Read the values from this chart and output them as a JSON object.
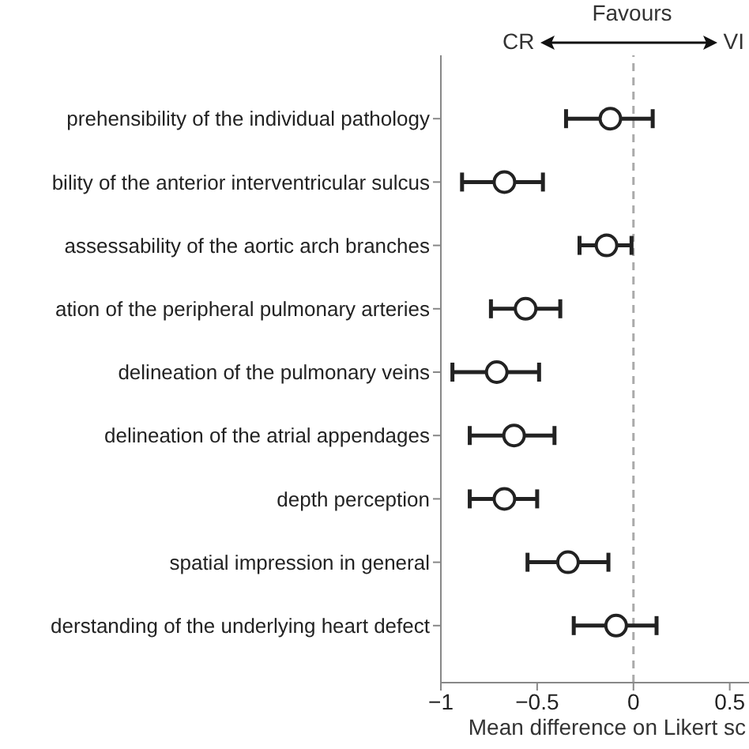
{
  "chart_data": {
    "type": "scatter",
    "orientation": "horizontal",
    "categories": [
      "prehensibility of the individual pathology",
      "bility of the anterior interventricular sulcus",
      "assessability of the aortic arch branches",
      "ation of the peripheral pulmonary arteries",
      "delineation of the pulmonary veins",
      "delineation of the atrial appendages",
      "depth perception",
      "spatial impression in general",
      "derstanding of the underlying heart defect"
    ],
    "values": [
      -0.12,
      -0.67,
      -0.14,
      -0.56,
      -0.71,
      -0.62,
      -0.67,
      -0.34,
      -0.09
    ],
    "errors": [
      [
        -0.35,
        0.1
      ],
      [
        -0.89,
        -0.47
      ],
      [
        -0.28,
        -0.01
      ],
      [
        -0.74,
        -0.38
      ],
      [
        -0.94,
        -0.49
      ],
      [
        -0.85,
        -0.41
      ],
      [
        -0.85,
        -0.5
      ],
      [
        -0.55,
        -0.13
      ],
      [
        -0.31,
        0.12
      ]
    ],
    "color": "#222222",
    "marker": "circle",
    "xlabel": "Mean difference on Likert sc",
    "xlim": [
      -1,
      0.6
    ],
    "xticks": [
      -1,
      -0.5,
      0,
      0.5
    ],
    "ref_lines": [
      {
        "axis": "x",
        "value": 0,
        "color": "#aaaaaa",
        "line_style": "dashed"
      }
    ],
    "annotations": [
      "Favours",
      "CR",
      "VI"
    ]
  }
}
